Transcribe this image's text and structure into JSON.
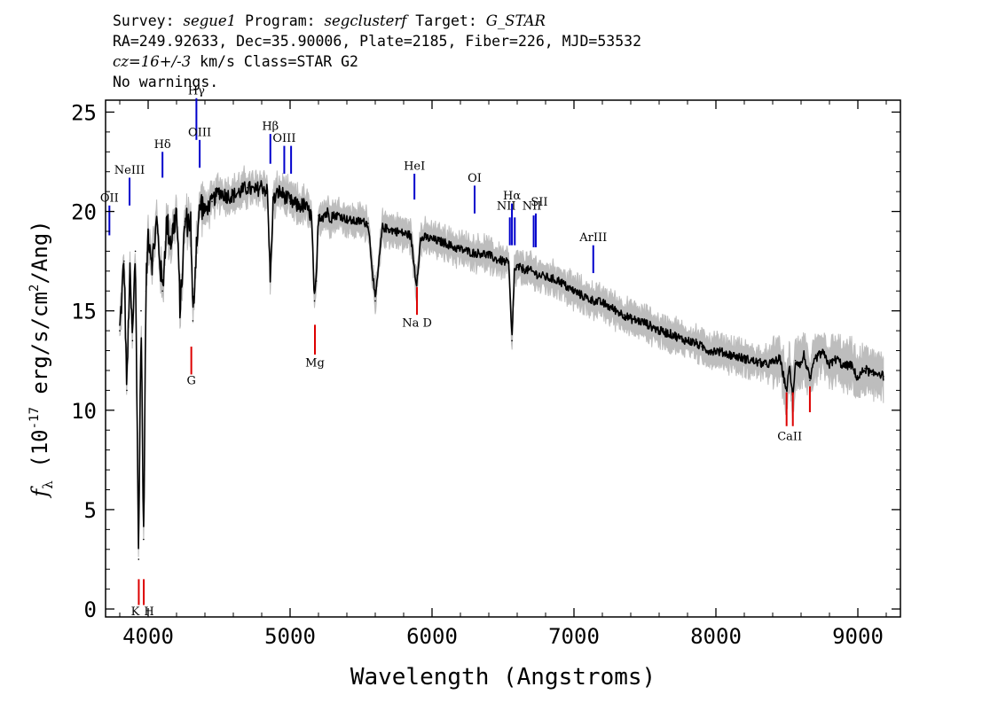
{
  "header": {
    "survey_label": "Survey:",
    "survey": "segue1",
    "program_label": "Program:",
    "program": "segclusterf",
    "target_label": "Target:",
    "target": "G_STAR",
    "line2": "RA=249.92633, Dec=35.90006, Plate=2185, Fiber=226, MJD=53532",
    "cz": "cz=16+/-3",
    "cz_units": "km/s",
    "class_text": "Class=STAR G2",
    "warnings": "No warnings."
  },
  "colors": {
    "spectrum": "#000000",
    "error_band": "#bdbdbd",
    "emission_lines": "#0000cc",
    "absorption_lines": "#dd0000"
  },
  "chart_data": {
    "type": "line",
    "xlabel": "Wavelength (Angstroms)",
    "ylabel": "fλ (10^-17 erg/s/cm^2/Ang)",
    "xlim": [
      3700,
      9300
    ],
    "ylim": [
      -0.4,
      25.6
    ],
    "xticks": [
      4000,
      5000,
      6000,
      7000,
      8000,
      9000
    ],
    "yticks": [
      0,
      5,
      10,
      15,
      20,
      25
    ],
    "x_tick_labels": [
      "4000",
      "5000",
      "6000",
      "7000",
      "8000",
      "9000"
    ],
    "y_tick_labels": [
      "0",
      "5",
      "10",
      "15",
      "20",
      "25"
    ],
    "grid": false,
    "series": [
      {
        "x": [
          3800,
          3830,
          3850,
          3870,
          3890,
          3910,
          3933,
          3950,
          3968,
          3985,
          4000,
          4030,
          4060,
          4101,
          4130,
          4160,
          4200,
          4226,
          4260,
          4300,
          4315,
          4340,
          4370,
          4400,
          4450,
          4500,
          4550,
          4600,
          4650,
          4700,
          4750,
          4800,
          4840,
          4861,
          4880,
          4920,
          4960,
          5000,
          5050,
          5100,
          5150,
          5172,
          5185,
          5200,
          5250,
          5300,
          5350,
          5400,
          5450,
          5500,
          5550,
          5600,
          5650,
          5700,
          5750,
          5800,
          5850,
          5870,
          5890,
          5896,
          5920,
          5950,
          6000,
          6050,
          6100,
          6150,
          6200,
          6250,
          6300,
          6350,
          6400,
          6450,
          6500,
          6540,
          6563,
          6580,
          6600,
          6650,
          6700,
          6750,
          6800,
          6850,
          6900,
          6950,
          7000,
          7050,
          7100,
          7150,
          7200,
          7250,
          7300,
          7350,
          7400,
          7450,
          7500,
          7550,
          7600,
          7650,
          7700,
          7750,
          7800,
          7850,
          7900,
          7950,
          8000,
          8050,
          8100,
          8150,
          8200,
          8250,
          8300,
          8350,
          8400,
          8450,
          8498,
          8520,
          8542,
          8560,
          8600,
          8620,
          8662,
          8700,
          8750,
          8800,
          8850,
          8900,
          8950,
          9000,
          9050,
          9100,
          9150,
          9180
        ],
        "y": [
          14.0,
          17.5,
          11.0,
          17.0,
          13.5,
          18.0,
          2.5,
          15.0,
          3.5,
          16.0,
          19.0,
          17.5,
          19.5,
          16.0,
          19.5,
          18.5,
          20.0,
          15.0,
          19.5,
          19.5,
          14.5,
          18.5,
          20.5,
          20.0,
          20.5,
          21.0,
          20.8,
          20.8,
          21.0,
          21.2,
          21.0,
          21.3,
          21.0,
          16.5,
          20.5,
          21.0,
          20.8,
          20.5,
          20.3,
          20.3,
          19.8,
          15.5,
          16.5,
          19.8,
          19.9,
          19.8,
          19.8,
          19.6,
          19.5,
          19.5,
          19.4,
          15.5,
          19.2,
          19.1,
          19.0,
          18.9,
          18.8,
          17.5,
          16.3,
          16.8,
          18.6,
          18.7,
          18.6,
          18.5,
          18.4,
          18.2,
          18.1,
          18.0,
          17.9,
          17.9,
          17.8,
          17.6,
          17.5,
          17.4,
          13.5,
          17.0,
          17.2,
          17.1,
          17.0,
          16.8,
          16.7,
          16.6,
          16.5,
          16.2,
          16.0,
          15.8,
          15.6,
          15.5,
          15.4,
          15.2,
          15.0,
          14.8,
          14.6,
          14.5,
          14.4,
          14.2,
          14.0,
          13.9,
          13.8,
          13.6,
          13.5,
          13.4,
          13.2,
          13.0,
          13.0,
          12.9,
          12.8,
          12.7,
          12.6,
          12.5,
          12.4,
          12.3,
          12.4,
          12.6,
          11.0,
          12.2,
          10.5,
          12.5,
          12.3,
          12.8,
          11.5,
          12.6,
          12.9,
          12.3,
          12.6,
          12.2,
          12.3,
          11.6,
          12.1,
          11.8,
          11.9,
          11.7
        ]
      }
    ],
    "emission_lines": [
      {
        "label": "OII",
        "wavelength": 3727
      },
      {
        "label": "NeIII",
        "wavelength": 3869
      },
      {
        "label": "Hδ",
        "wavelength": 4101
      },
      {
        "label": "Hγ",
        "wavelength": 4340
      },
      {
        "label": "OIII",
        "wavelength": 4363
      },
      {
        "label": "Hβ",
        "wavelength": 4861
      },
      {
        "label": "OIII",
        "wavelength": 4959
      },
      {
        "label": "",
        "wavelength": 5007
      },
      {
        "label": "HeI",
        "wavelength": 5876
      },
      {
        "label": "OI",
        "wavelength": 6300
      },
      {
        "label": "NII",
        "wavelength": 6548
      },
      {
        "label": "Hα",
        "wavelength": 6563
      },
      {
        "label": "",
        "wavelength": 6583
      },
      {
        "label": "NII",
        "wavelength": 6716
      },
      {
        "label": "SII",
        "wavelength": 6731
      },
      {
        "label": "ArIII",
        "wavelength": 7136
      }
    ],
    "absorption_lines": [
      {
        "label": "K",
        "wavelength": 3934
      },
      {
        "label": "H",
        "wavelength": 3969
      },
      {
        "label": "G",
        "wavelength": 4304
      },
      {
        "label": "Mg",
        "wavelength": 5175
      },
      {
        "label": "Na D",
        "wavelength": 5894
      },
      {
        "label": "CaII",
        "wavelength": 8498
      },
      {
        "label": "",
        "wavelength": 8542
      },
      {
        "label": "",
        "wavelength": 8662
      }
    ]
  }
}
